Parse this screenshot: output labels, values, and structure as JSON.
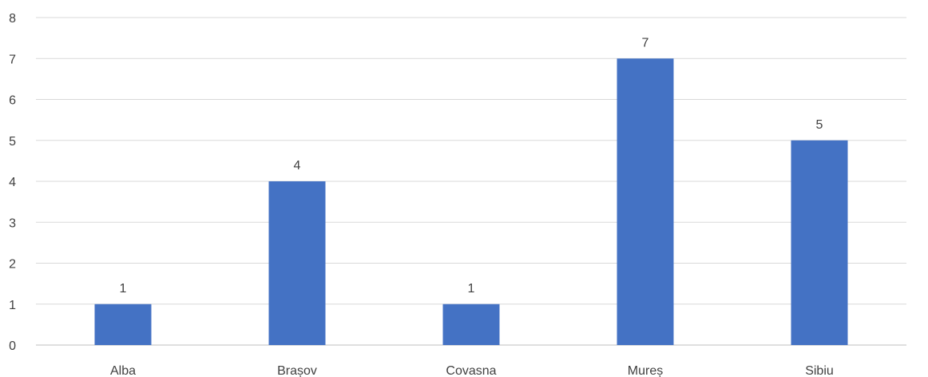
{
  "chart_data": {
    "type": "bar",
    "categories": [
      "Alba",
      "Brașov",
      "Covasna",
      "Mureș",
      "Sibiu"
    ],
    "values": [
      1,
      4,
      1,
      7,
      5
    ],
    "data_labels": [
      "1",
      "4",
      "1",
      "7",
      "5"
    ],
    "yticks": [
      "0",
      "1",
      "2",
      "3",
      "4",
      "5",
      "6",
      "7",
      "8"
    ],
    "ylim": [
      0,
      8
    ],
    "grid": true,
    "legend": "none",
    "bar_color": "#4472c4",
    "title": "",
    "xlabel": "",
    "ylabel": ""
  }
}
